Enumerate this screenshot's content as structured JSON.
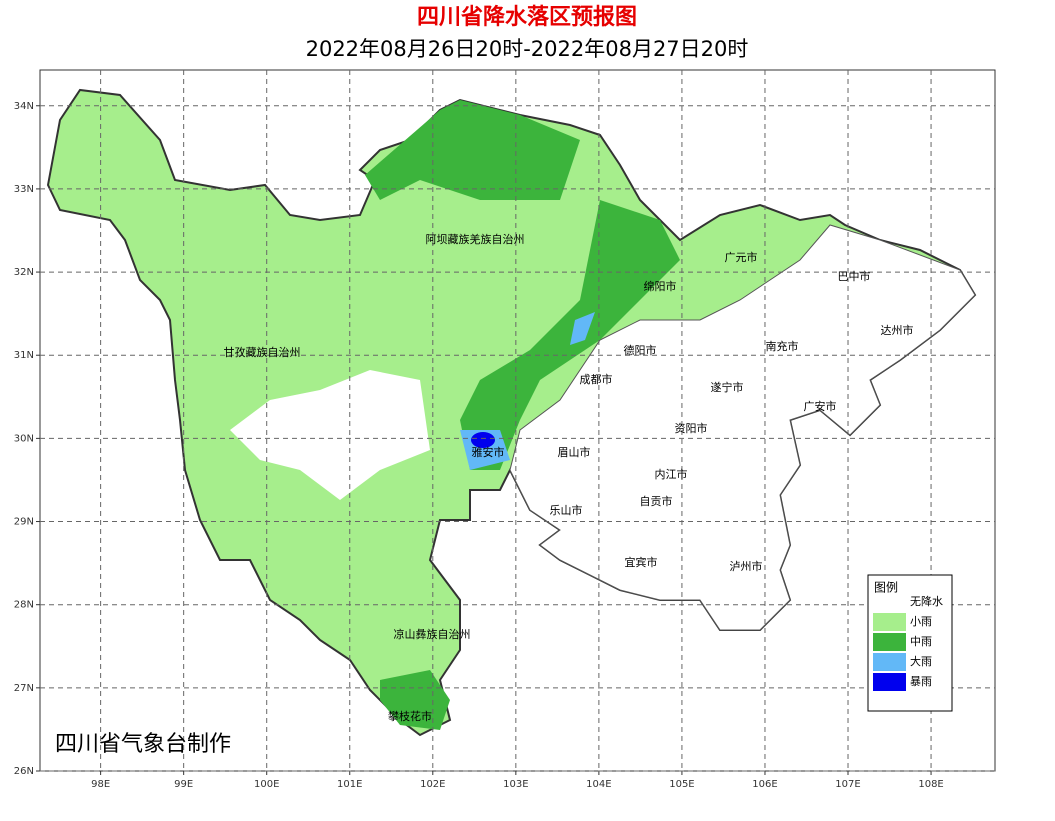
{
  "header": {
    "title": "四川省降水落区预报图",
    "subtitle": "2022年08月26日20时-2022年08月27日20时"
  },
  "map": {
    "xlim": [
      97.27,
      108.77
    ],
    "ylim": [
      26,
      34.43
    ],
    "grid": true,
    "xticks": [
      {
        "value": 98,
        "label": "98E"
      },
      {
        "value": 99,
        "label": "99E"
      },
      {
        "value": 100,
        "label": "100E"
      },
      {
        "value": 101,
        "label": "101E"
      },
      {
        "value": 102,
        "label": "102E"
      },
      {
        "value": 103,
        "label": "103E"
      },
      {
        "value": 104,
        "label": "104E"
      },
      {
        "value": 105,
        "label": "105E"
      },
      {
        "value": 106,
        "label": "106E"
      },
      {
        "value": 107,
        "label": "107E"
      },
      {
        "value": 108,
        "label": "108E"
      }
    ],
    "yticks": [
      {
        "value": 26,
        "label": "26N"
      },
      {
        "value": 27,
        "label": "27N"
      },
      {
        "value": 28,
        "label": "28N"
      },
      {
        "value": 29,
        "label": "29N"
      },
      {
        "value": 30,
        "label": "30N"
      },
      {
        "value": 31,
        "label": "31N"
      },
      {
        "value": 32,
        "label": "32N"
      },
      {
        "value": 33,
        "label": "33N"
      },
      {
        "value": 34,
        "label": "34N"
      }
    ],
    "regions": [
      "阿坝藏族羌族自治州",
      "甘孜藏族自治州",
      "凉山彝族自治州",
      "攀枝花市",
      "雅安市",
      "成都市",
      "德阳市",
      "绵阳市",
      "广元市",
      "巴中市",
      "达州市",
      "南充市",
      "遂宁市",
      "广安市",
      "资阳市",
      "眉山市",
      "内江市",
      "自贡市",
      "乐山市",
      "宜宾市",
      "泸州市"
    ],
    "legend": {
      "title": "图例",
      "items": [
        {
          "name": "无降水",
          "color": "#ffffff"
        },
        {
          "name": "小雨",
          "color": "#a6ee8c"
        },
        {
          "name": "中雨",
          "color": "#3cb43c"
        },
        {
          "name": "大雨",
          "color": "#62b8f7"
        },
        {
          "name": "暴雨",
          "color": "#0000ee"
        }
      ]
    }
  },
  "credit": "四川省气象台制作"
}
